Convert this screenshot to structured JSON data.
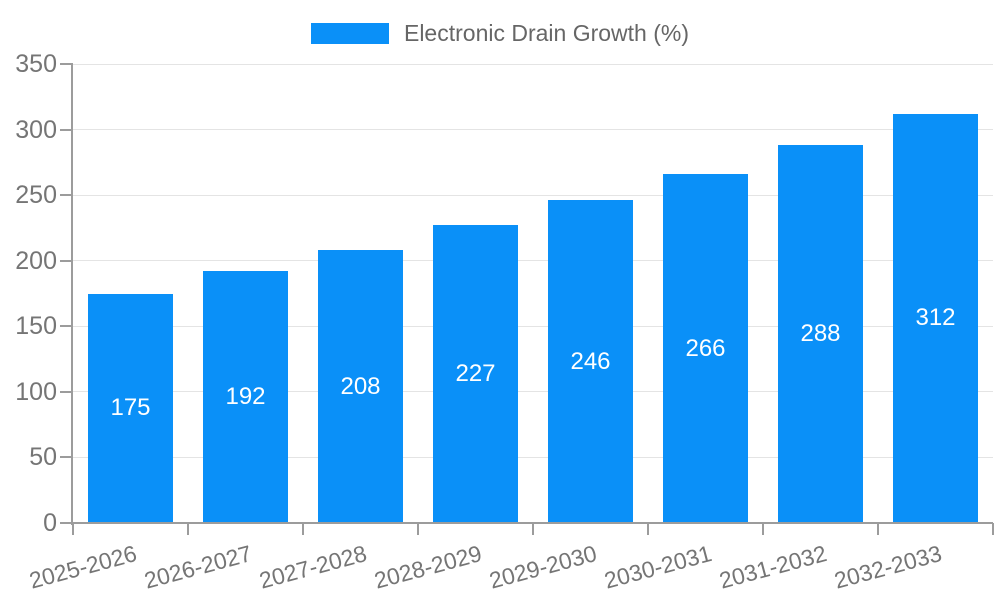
{
  "chart_data": {
    "type": "bar",
    "legend_label": "Electronic Drain Growth (%)",
    "legend_position": "top-center",
    "categories": [
      "2025-2026",
      "2026-2027",
      "2027-2028",
      "2028-2029",
      "2029-2030",
      "2030-2031",
      "2031-2032",
      "2032-2033"
    ],
    "series": [
      {
        "name": "Electronic Drain Growth (%)",
        "values": [
          175,
          192,
          208,
          227,
          246,
          266,
          288,
          312
        ]
      }
    ],
    "value_labels": "inside-center",
    "ylim": [
      0,
      350
    ],
    "yticks": [
      0,
      50,
      100,
      150,
      200,
      250,
      300,
      350
    ],
    "grid": true,
    "x_label_rotation_deg": -15,
    "colors": {
      "bar": "#0a90f8",
      "bar_value_label": "#ffffff",
      "axis_line": "#9c9c9c",
      "gridline": "#e4e4e4",
      "tick_label": "#757575",
      "legend_text": "#666666",
      "background": "#ffffff"
    }
  }
}
